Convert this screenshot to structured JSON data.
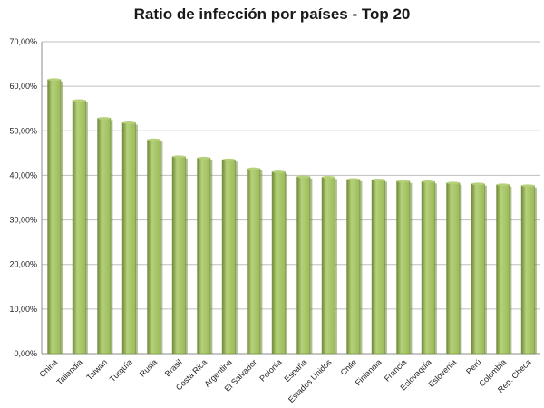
{
  "chart_data": {
    "type": "bar",
    "title": "Ratio de infección por países - Top 20",
    "xlabel": "",
    "ylabel": "",
    "ylim": [
      0,
      70
    ],
    "y_tick_labels": [
      "0,00%",
      "10,00%",
      "20,00%",
      "30,00%",
      "40,00%",
      "50,00%",
      "60,00%",
      "70,00%"
    ],
    "y_ticks": [
      0,
      10,
      20,
      30,
      40,
      50,
      60,
      70
    ],
    "grid": true,
    "legend": "none",
    "categories": [
      "China",
      "Tailandia",
      "Taiwan",
      "Turquía",
      "Rusia",
      "Brasil",
      "Costa Rica",
      "Argentina",
      "El Salvador",
      "Polonia",
      "España",
      "Estados Unidos",
      "Chile",
      "Finlandia",
      "Francia",
      "Eslovaquia",
      "Eslovenia",
      "Perú",
      "Colombia",
      "Rep. Checa"
    ],
    "values": [
      61.5,
      56.8,
      52.8,
      51.8,
      48.0,
      44.2,
      43.9,
      43.5,
      41.5,
      40.8,
      39.7,
      39.6,
      39.1,
      39.0,
      38.7,
      38.6,
      38.3,
      38.1,
      37.9,
      37.7
    ],
    "colors": {
      "bar": "#9bbb59",
      "bar_dark": "#6f8a37",
      "bar_light": "#b6d17a",
      "grid": "#bfbfbf",
      "axis": "#8c8c8c"
    }
  }
}
